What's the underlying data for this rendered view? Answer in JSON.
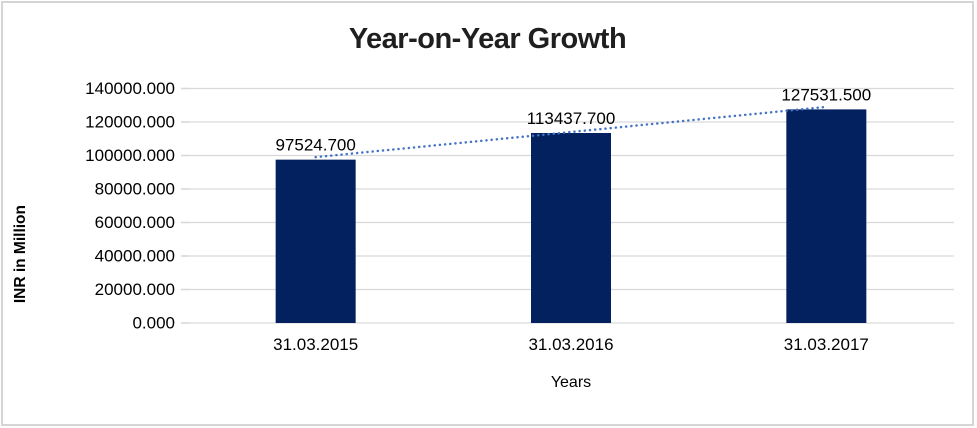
{
  "chart_data": {
    "type": "bar",
    "title": "Year-on-Year Growth",
    "xlabel": "Years",
    "ylabel": "INR in Million",
    "categories": [
      "31.03.2015",
      "31.03.2016",
      "31.03.2017"
    ],
    "values": [
      97524.7,
      113437.7,
      127531.5
    ],
    "data_labels": [
      "97524.700",
      "113437.700",
      "127531.500"
    ],
    "ylim": [
      0,
      140000
    ],
    "ytick_step": 20000,
    "ytick_labels": [
      "0.000",
      "20000.000",
      "40000.000",
      "60000.000",
      "80000.000",
      "100000.000",
      "120000.000",
      "140000.000"
    ],
    "grid": true,
    "legend": "none",
    "trendline": {
      "type": "linear",
      "style": "dotted"
    },
    "colors": {
      "bar": "#03215F",
      "trendline": "#4472C4",
      "gridline": "#D9D9D9",
      "axis_text": "#000000",
      "title_text": "#1F1F1F",
      "frame_border": "#D5D5D5"
    }
  }
}
